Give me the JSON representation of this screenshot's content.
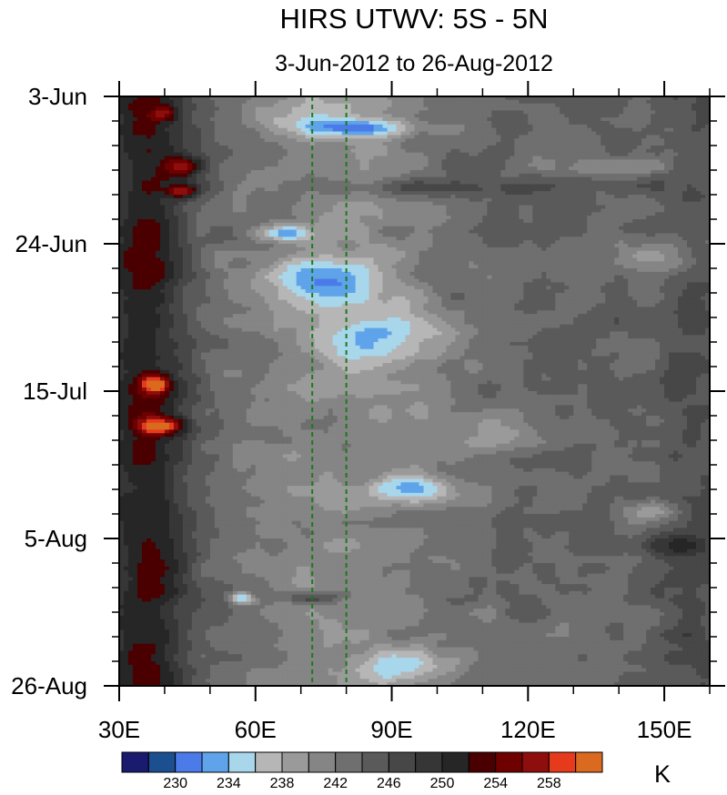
{
  "chart_data": {
    "type": "heatmap",
    "title": "HIRS UTWV: 5S - 5N",
    "subtitle": "3-Jun-2012 to 26-Aug-2012",
    "x_axis": {
      "range": [
        30,
        160
      ],
      "ticks": [
        30,
        60,
        90,
        120,
        150
      ],
      "tick_labels": [
        "30E",
        "60E",
        "90E",
        "120E",
        "150E"
      ],
      "minor_step": 10
    },
    "y_axis": {
      "range": [
        "2012-06-03",
        "2012-08-26"
      ],
      "direction": "downward",
      "ticks": [
        "2012-06-03",
        "2012-06-24",
        "2012-07-15",
        "2012-08-05",
        "2012-08-26"
      ],
      "tick_labels": [
        "3-Jun",
        "24-Jun",
        "15-Jul",
        "5-Aug",
        "26-Aug"
      ],
      "minor_step_days": 3.5
    },
    "reference_lines": {
      "style": "dashed",
      "color": "#1a7a1a",
      "longitudes": [
        72.5,
        80
      ]
    },
    "colorbar": {
      "unit_label": "K",
      "levels": [
        228,
        230,
        232,
        234,
        236,
        238,
        240,
        242,
        244,
        246,
        248,
        250,
        252,
        254,
        256,
        258,
        260
      ],
      "level_labels": [
        "230",
        "234",
        "238",
        "242",
        "246",
        "250",
        "254",
        "258"
      ],
      "colors": [
        "#1a1a6e",
        "#1b4f8f",
        "#4a7be8",
        "#5fa3ea",
        "#a8d7ec",
        "#b6b6b6",
        "#9a9a9a",
        "#858585",
        "#6f6f6f",
        "#5a5a5a",
        "#474747",
        "#363636",
        "#262626",
        "#4a0000",
        "#6e0000",
        "#8e0d0d",
        "#e63a1c",
        "#d96a1f"
      ]
    }
  }
}
